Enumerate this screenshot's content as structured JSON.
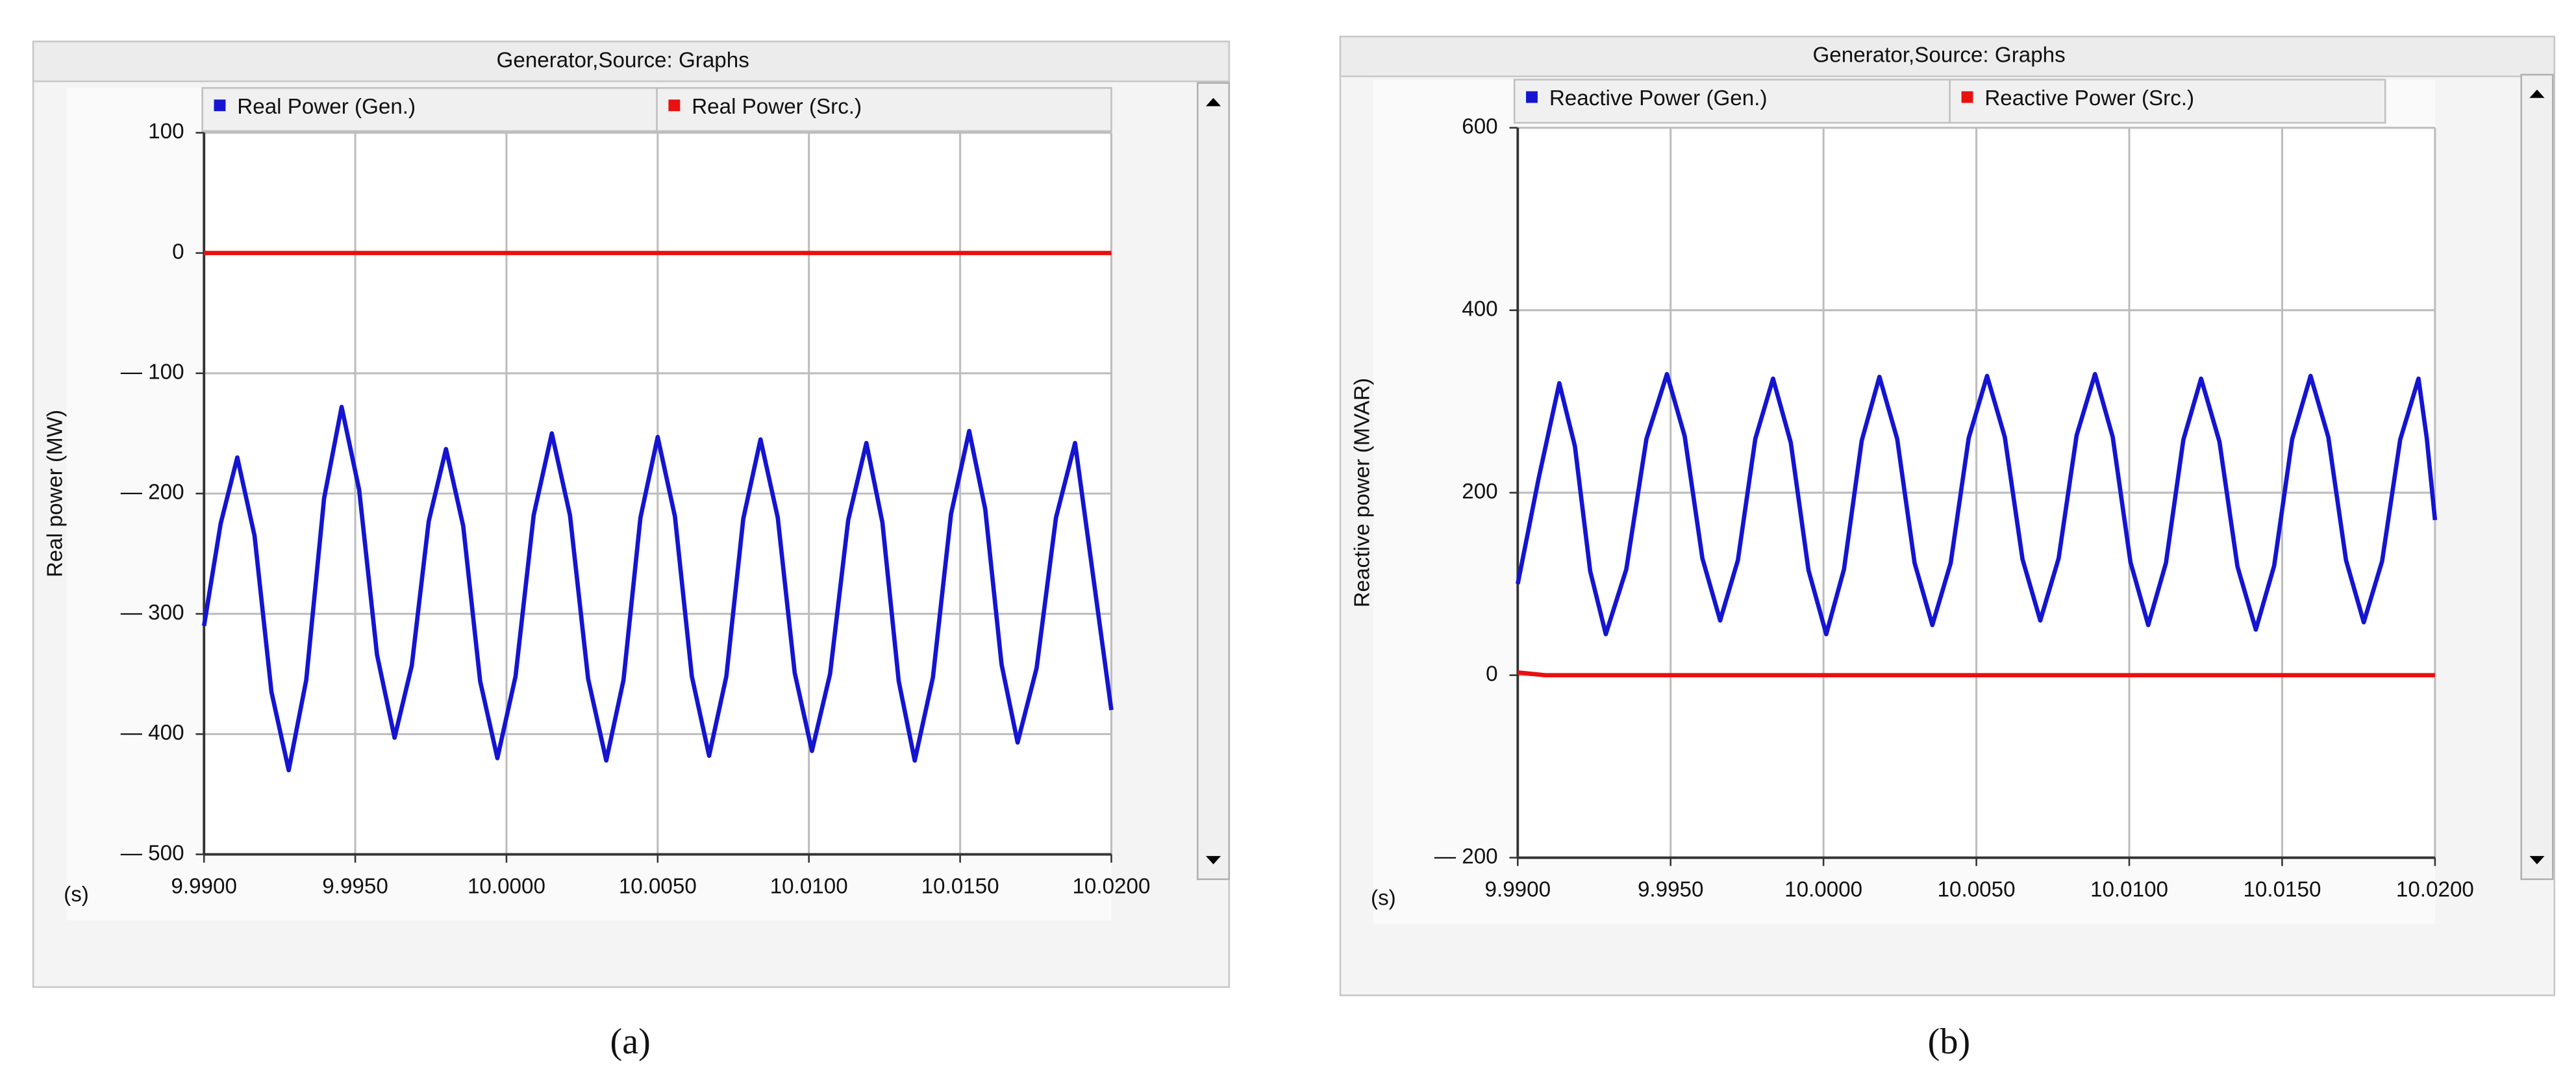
{
  "chart_data": [
    {
      "type": "line",
      "title": "Generator,Source: Graphs",
      "ylabel": "Real power (MW)",
      "xlabel": "(s)",
      "caption": "(a)",
      "xlim": [
        9.99,
        10.02
      ],
      "xticks": [
        {
          "value": 9.99,
          "label": "9.9900"
        },
        {
          "value": 9.995,
          "label": "9.9950"
        },
        {
          "value": 10.0,
          "label": "10.0000"
        },
        {
          "value": 10.005,
          "label": "10.0050"
        },
        {
          "value": 10.01,
          "label": "10.0100"
        },
        {
          "value": 10.015,
          "label": "10.0150"
        },
        {
          "value": 10.02,
          "label": "10.0200"
        }
      ],
      "ylim": [
        -500,
        100
      ],
      "yticks": [
        100,
        0,
        {
          "value": -100,
          "label": "— 100"
        },
        {
          "value": -200,
          "label": "— 200"
        },
        {
          "value": -300,
          "label": "— 300"
        },
        {
          "value": -400,
          "label": "— 400"
        },
        {
          "value": -500,
          "label": "— 500"
        }
      ],
      "grid": true,
      "series": [
        {
          "name": "Real Power (Gen.)",
          "color": "#1414d2",
          "x": [
            9.99,
            9.99055,
            9.9911,
            9.99167,
            9.99223,
            9.9928,
            9.99338,
            9.99397,
            9.99455,
            9.99513,
            9.99572,
            9.9963,
            9.99687,
            9.99743,
            9.998,
            9.99857,
            9.99913,
            9.9997,
            10.0003,
            10.0009,
            10.0015,
            10.0021,
            10.0027,
            10.0033,
            10.00387,
            10.00443,
            10.005,
            10.00557,
            10.00613,
            10.0067,
            10.00727,
            10.00783,
            10.0084,
            10.00897,
            10.00953,
            10.0101,
            10.0107,
            10.0113,
            10.0119,
            10.01243,
            10.01297,
            10.0135,
            10.0141,
            10.0147,
            10.0153,
            10.01583,
            10.01637,
            10.0169,
            10.01753,
            10.01817,
            10.0188,
            10.0194,
            10.02
          ],
          "values": [
            -310,
            -225,
            -170,
            -235,
            -365,
            -430,
            -355,
            -204,
            -128,
            -197,
            -334,
            -403,
            -343,
            -223,
            -163,
            -227,
            -356,
            -420,
            -352,
            -218,
            -150,
            -218,
            -354,
            -422,
            -355,
            -220,
            -153,
            -219,
            -352,
            -418,
            -352,
            -221,
            -155,
            -220,
            -349,
            -414,
            -350,
            -222,
            -158,
            -224,
            -356,
            -422,
            -353,
            -217,
            -148,
            -213,
            -342,
            -407,
            -345,
            -220,
            -158,
            -269,
            -380
          ]
        },
        {
          "name": "Real Power (Src.)",
          "color": "#e81010",
          "x": [
            9.99,
            10.02
          ],
          "values": [
            0,
            0
          ]
        }
      ]
    },
    {
      "type": "line",
      "title": "Generator,Source: Graphs",
      "ylabel": "Reactive power (MVAR)",
      "xlabel": "(s)",
      "caption": "(b)",
      "xlim": [
        9.99,
        10.02
      ],
      "xticks": [
        {
          "value": 9.99,
          "label": "9.9900"
        },
        {
          "value": 9.995,
          "label": "9.9950"
        },
        {
          "value": 10.0,
          "label": "10.0000"
        },
        {
          "value": 10.005,
          "label": "10.0050"
        },
        {
          "value": 10.01,
          "label": "10.0100"
        },
        {
          "value": 10.015,
          "label": "10.0150"
        },
        {
          "value": 10.02,
          "label": "10.0200"
        }
      ],
      "ylim": [
        -200,
        600
      ],
      "yticks": [
        600,
        400,
        200,
        0,
        {
          "value": -200,
          "label": "— 200"
        }
      ],
      "grid": true,
      "series": [
        {
          "name": "Reactive Power (Gen.)",
          "color": "#1414d2",
          "x": [
            9.99,
            9.99068,
            9.99136,
            9.99187,
            9.99237,
            9.99288,
            9.99355,
            9.99421,
            9.99488,
            9.99546,
            9.99604,
            9.99662,
            9.9972,
            9.99777,
            9.99835,
            9.99893,
            9.99951,
            10.00009,
            10.00067,
            10.00125,
            10.00183,
            10.00241,
            10.00298,
            10.00356,
            10.00416,
            10.00475,
            10.00535,
            10.00593,
            10.00651,
            10.00709,
            10.00769,
            10.00828,
            10.00888,
            10.00946,
            10.01004,
            10.01062,
            10.0112,
            10.01177,
            10.01235,
            10.01295,
            10.01354,
            10.01414,
            10.01474,
            10.01533,
            10.01593,
            10.01651,
            10.01709,
            10.01767,
            10.01827,
            10.01886,
            10.01946,
            10.01973,
            10.02
          ],
          "values": [
            100,
            215,
            320,
            251,
            114,
            45,
            116,
            259,
            330,
            262,
            128,
            60,
            126,
            259,
            325,
            255,
            115,
            45,
            116,
            257,
            327,
            259,
            123,
            55,
            123,
            260,
            328,
            261,
            127,
            60,
            128,
            263,
            330,
            261,
            124,
            55,
            123,
            258,
            325,
            256,
            119,
            50,
            120,
            259,
            328,
            261,
            126,
            58,
            125,
            258,
            325,
            260,
            170
          ]
        },
        {
          "name": "Reactive Power (Src.)",
          "color": "#e81010",
          "x": [
            9.99,
            9.9909,
            10.02
          ],
          "values": [
            3,
            0,
            0
          ]
        }
      ]
    }
  ]
}
